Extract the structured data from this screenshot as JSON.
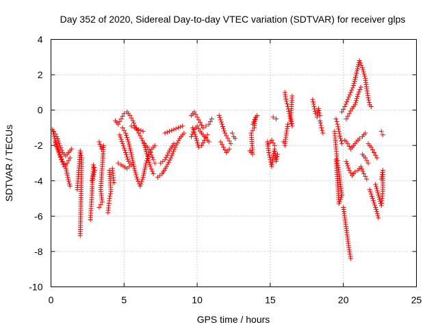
{
  "chart_data": {
    "type": "scatter",
    "title": "Day 352 of 2020, Sidereal Day-to-day VTEC variation (SDTVAR) for receiver glps",
    "xlabel": "GPS time / hours",
    "ylabel": "SDTVAR / TECUs",
    "xlim": [
      0,
      25
    ],
    "ylim": [
      -10,
      4
    ],
    "xticks": [
      0,
      5,
      10,
      15,
      20,
      25
    ],
    "yticks": [
      -10,
      -8,
      -6,
      -4,
      -2,
      0,
      2,
      4
    ],
    "grid": true,
    "marker": "plus",
    "color": "#ff0000",
    "series": [
      {
        "name": "SDTVAR",
        "tracks": [
          [
            [
              0.1,
              -1.1
            ],
            [
              0.25,
              -1.6
            ],
            [
              0.4,
              -2.1
            ],
            [
              0.6,
              -2.5
            ],
            [
              0.8,
              -2.9
            ],
            [
              1.0,
              -3.2
            ],
            [
              1.15,
              -3.8
            ],
            [
              1.3,
              -4.3
            ]
          ],
          [
            [
              0.2,
              -1.2
            ],
            [
              0.4,
              -1.5
            ],
            [
              0.6,
              -2.0
            ],
            [
              0.8,
              -2.4
            ],
            [
              1.0,
              -2.6
            ],
            [
              1.2,
              -2.4
            ],
            [
              1.4,
              -2.2
            ]
          ],
          [
            [
              0.3,
              -1.8
            ],
            [
              0.5,
              -2.3
            ],
            [
              0.7,
              -2.8
            ],
            [
              0.9,
              -3.2
            ],
            [
              1.1,
              -3.0
            ],
            [
              1.3,
              -2.7
            ]
          ],
          [
            [
              1.8,
              -4.5
            ],
            [
              2.0,
              -2.3
            ],
            [
              2.1,
              -2.7
            ],
            [
              2.0,
              -7.1
            ]
          ],
          [
            [
              2.7,
              -6.2
            ],
            [
              2.8,
              -4.7
            ],
            [
              2.9,
              -3.1
            ],
            [
              3.0,
              -3.4
            ],
            [
              2.8,
              -4.0
            ]
          ],
          [
            [
              3.3,
              -1.8
            ],
            [
              3.45,
              -2.2
            ],
            [
              3.6,
              -2.0
            ],
            [
              3.4,
              -4.5
            ],
            [
              3.5,
              -5.2
            ],
            [
              3.3,
              -5.5
            ]
          ],
          [
            [
              3.9,
              -5.8
            ],
            [
              4.0,
              -5.0
            ],
            [
              4.1,
              -4.6
            ],
            [
              4.0,
              -3.4
            ],
            [
              4.2,
              -3.3
            ],
            [
              4.3,
              -4.1
            ]
          ],
          [
            [
              4.4,
              -0.6
            ],
            [
              4.6,
              -0.8
            ],
            [
              4.8,
              -0.5
            ],
            [
              5.0,
              -0.2
            ],
            [
              5.2,
              -0.1
            ],
            [
              5.4,
              -0.3
            ],
            [
              5.6,
              -0.6
            ],
            [
              5.8,
              -1.0
            ],
            [
              6.0,
              -1.3
            ],
            [
              6.2,
              -1.6
            ],
            [
              6.4,
              -2.0
            ],
            [
              6.6,
              -2.6
            ],
            [
              6.8,
              -3.2
            ],
            [
              7.0,
              -3.6
            ]
          ],
          [
            [
              4.9,
              -1.0
            ],
            [
              5.1,
              -1.3
            ],
            [
              5.3,
              -1.8
            ],
            [
              5.5,
              -2.5
            ],
            [
              5.7,
              -3.3
            ],
            [
              5.9,
              -3.9
            ],
            [
              6.1,
              -4.3
            ],
            [
              6.3,
              -3.8
            ],
            [
              6.5,
              -3.0
            ],
            [
              6.7,
              -2.5
            ],
            [
              6.9,
              -2.2
            ],
            [
              7.1,
              -2.0
            ]
          ],
          [
            [
              4.7,
              -1.4
            ],
            [
              4.9,
              -1.9
            ],
            [
              5.1,
              -2.4
            ],
            [
              5.3,
              -2.9
            ],
            [
              5.5,
              -3.1
            ],
            [
              5.2,
              -3.3
            ],
            [
              4.8,
              -3.1
            ],
            [
              4.6,
              -3.0
            ]
          ],
          [
            [
              5.5,
              -0.9
            ],
            [
              5.7,
              -1.0
            ],
            [
              6.0,
              -1.1
            ],
            [
              6.3,
              -1.2
            ]
          ],
          [
            [
              6.4,
              -1.9
            ],
            [
              6.6,
              -2.1
            ],
            [
              6.8,
              -2.4
            ],
            [
              7.0,
              -2.8
            ],
            [
              7.1,
              -3.0
            ]
          ],
          [
            [
              7.3,
              -3.8
            ],
            [
              7.6,
              -3.6
            ],
            [
              7.9,
              -3.2
            ],
            [
              8.2,
              -2.7
            ],
            [
              8.5,
              -2.1
            ],
            [
              8.8,
              -1.6
            ],
            [
              9.1,
              -1.3
            ]
          ],
          [
            [
              7.5,
              -3.0
            ],
            [
              7.8,
              -2.8
            ],
            [
              8.1,
              -2.3
            ],
            [
              8.4,
              -1.9
            ]
          ],
          [
            [
              7.8,
              -1.3
            ],
            [
              8.1,
              -1.2
            ],
            [
              8.4,
              -1.1
            ],
            [
              8.7,
              -1.0
            ],
            [
              9.0,
              -0.9
            ]
          ],
          [
            [
              9.6,
              -0.3
            ],
            [
              9.8,
              -0.1
            ],
            [
              10.0,
              -0.4
            ],
            [
              10.2,
              -0.7
            ],
            [
              10.4,
              -1.0
            ],
            [
              10.6,
              -0.9
            ],
            [
              10.8,
              -0.8
            ],
            [
              11.0,
              -0.5
            ]
          ],
          [
            [
              9.7,
              -1.0
            ],
            [
              9.9,
              -1.5
            ],
            [
              10.1,
              -2.1
            ],
            [
              10.3,
              -2.0
            ],
            [
              10.5,
              -1.7
            ],
            [
              10.7,
              -1.4
            ]
          ],
          [
            [
              9.6,
              -1.5
            ],
            [
              9.8,
              -1.1
            ],
            [
              10.0,
              -0.9
            ],
            [
              10.2,
              -1.2
            ],
            [
              10.4,
              -1.4
            ],
            [
              10.6,
              -1.6
            ],
            [
              10.8,
              -1.8
            ]
          ],
          [
            [
              11.5,
              -0.3
            ],
            [
              11.7,
              -0.8
            ],
            [
              11.9,
              -1.3
            ],
            [
              12.1,
              -1.6
            ],
            [
              12.3,
              -1.9
            ]
          ],
          [
            [
              11.6,
              -1.8
            ],
            [
              11.8,
              -2.1
            ],
            [
              12.0,
              -2.4
            ],
            [
              12.2,
              -2.2
            ]
          ],
          [
            [
              12.4,
              -1.3
            ],
            [
              12.5,
              -1.5
            ],
            [
              12.6,
              -1.6
            ]
          ],
          [
            [
              13.6,
              -2.3
            ],
            [
              13.8,
              -2.5
            ],
            [
              13.7,
              -1.3
            ],
            [
              13.9,
              -1.0
            ],
            [
              14.0,
              -0.4
            ],
            [
              13.8,
              -0.8
            ],
            [
              14.1,
              -0.3
            ]
          ],
          [
            [
              14.8,
              -1.8
            ],
            [
              14.9,
              -2.4
            ],
            [
              15.0,
              -2.8
            ],
            [
              15.1,
              -3.2
            ],
            [
              15.2,
              -2.6
            ],
            [
              15.3,
              -2.2
            ],
            [
              15.4,
              -2.9
            ],
            [
              15.5,
              -2.5
            ]
          ],
          [
            [
              14.9,
              -1.9
            ],
            [
              15.1,
              -1.7
            ],
            [
              15.3,
              -2.0
            ]
          ],
          [
            [
              15.2,
              -0.4
            ],
            [
              15.4,
              -0.5
            ]
          ],
          [
            [
              15.9,
              -1.8
            ],
            [
              16.0,
              -2.0
            ],
            [
              16.1,
              -1.3
            ],
            [
              16.2,
              -0.8
            ]
          ],
          [
            [
              16.0,
              1.0
            ],
            [
              16.1,
              0.5
            ],
            [
              16.2,
              0.2
            ],
            [
              16.3,
              -0.2
            ],
            [
              16.4,
              -0.6
            ],
            [
              16.5,
              -0.9
            ],
            [
              16.4,
              -0.4
            ],
            [
              16.5,
              0.8
            ]
          ],
          [
            [
              17.9,
              0.6
            ],
            [
              18.0,
              0.2
            ],
            [
              18.1,
              -0.2
            ],
            [
              18.2,
              -0.4
            ],
            [
              18.3,
              0.1
            ],
            [
              18.4,
              -0.3
            ]
          ],
          [
            [
              18.4,
              -0.6
            ],
            [
              18.5,
              -1.0
            ],
            [
              18.6,
              -1.3
            ]
          ],
          [
            [
              19.4,
              -1.2
            ],
            [
              19.5,
              -2.2
            ],
            [
              19.6,
              -3.0
            ],
            [
              19.7,
              -3.5
            ],
            [
              19.8,
              -4.2
            ],
            [
              19.9,
              -4.8
            ],
            [
              19.7,
              -5.3
            ],
            [
              19.6,
              -4.0
            ],
            [
              19.5,
              -2.8
            ]
          ],
          [
            [
              19.5,
              -0.5
            ],
            [
              19.6,
              -0.8
            ],
            [
              19.7,
              -1.2
            ],
            [
              19.8,
              -1.6
            ],
            [
              19.9,
              -1.9
            ]
          ],
          [
            [
              20.0,
              -5.5
            ],
            [
              20.1,
              -6.1
            ],
            [
              20.2,
              -6.7
            ],
            [
              20.3,
              -7.3
            ],
            [
              20.4,
              -7.9
            ],
            [
              20.5,
              -8.4
            ]
          ],
          [
            [
              19.9,
              -0.1
            ],
            [
              20.1,
              0.2
            ],
            [
              20.3,
              0.6
            ],
            [
              20.5,
              1.0
            ],
            [
              20.7,
              1.4
            ],
            [
              20.9,
              2.1
            ],
            [
              21.1,
              2.8
            ],
            [
              21.3,
              2.4
            ],
            [
              21.5,
              1.8
            ],
            [
              21.6,
              1.2
            ],
            [
              21.7,
              0.7
            ],
            [
              21.8,
              0.3
            ],
            [
              21.9,
              0.2
            ]
          ],
          [
            [
              20.2,
              -0.5
            ],
            [
              20.4,
              -0.2
            ],
            [
              20.6,
              0.1
            ],
            [
              20.8,
              0.3
            ],
            [
              21.0,
              0.9
            ],
            [
              21.2,
              1.3
            ]
          ],
          [
            [
              20.1,
              -1.7
            ],
            [
              20.3,
              -1.9
            ],
            [
              20.5,
              -2.2
            ],
            [
              20.7,
              -2.0
            ],
            [
              20.9,
              -1.8
            ],
            [
              21.1,
              -1.6
            ],
            [
              21.3,
              -1.5
            ],
            [
              21.5,
              -1.3
            ]
          ],
          [
            [
              20.2,
              -2.9
            ],
            [
              20.4,
              -3.4
            ],
            [
              20.6,
              -3.7
            ],
            [
              20.8,
              -3.5
            ],
            [
              21.0,
              -3.4
            ],
            [
              21.2,
              -3.2
            ],
            [
              21.4,
              -3.6
            ],
            [
              21.6,
              -3.9
            ]
          ],
          [
            [
              21.3,
              -2.5
            ],
            [
              21.5,
              -2.7
            ],
            [
              21.7,
              -3.0
            ]
          ],
          [
            [
              21.7,
              -1.9
            ],
            [
              21.9,
              -2.1
            ],
            [
              22.1,
              -2.4
            ],
            [
              22.3,
              -2.7
            ]
          ],
          [
            [
              21.8,
              -4.5
            ],
            [
              22.0,
              -5.0
            ],
            [
              22.2,
              -5.5
            ],
            [
              22.4,
              -6.1
            ]
          ],
          [
            [
              22.2,
              -4.2
            ],
            [
              22.4,
              -4.8
            ],
            [
              22.6,
              -5.4
            ],
            [
              22.7,
              -4.6
            ],
            [
              22.7,
              -3.4
            ],
            [
              22.6,
              -3.9
            ]
          ],
          [
            [
              22.6,
              -1.2
            ],
            [
              22.7,
              -1.4
            ]
          ]
        ]
      }
    ]
  }
}
